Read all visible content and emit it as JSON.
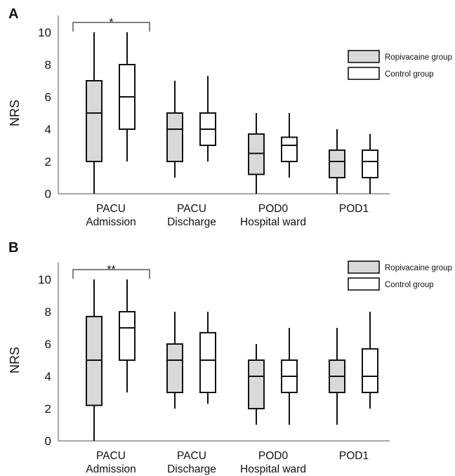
{
  "chart_data": [
    {
      "panel": "A",
      "type": "boxplot",
      "ylabel": "NRS",
      "ylim": [
        0,
        11
      ],
      "yticks": [
        "0",
        "2",
        "4",
        "6",
        "8",
        "10"
      ],
      "categories": [
        [
          "PACU",
          "Admission"
        ],
        [
          "PACU",
          "Discharge"
        ],
        [
          "POD0",
          "Hospital ward"
        ],
        [
          "POD1"
        ]
      ],
      "significance": [
        {
          "label": "*",
          "category_index": 0
        }
      ],
      "legend_position": "top-right",
      "series": [
        {
          "name": "Ropivacaine group",
          "fill": "#d9d9d9",
          "boxes": [
            {
              "min": 0,
              "q1": 2,
              "median": 5,
              "q3": 7,
              "max": 10
            },
            {
              "min": 1,
              "q1": 2,
              "median": 4,
              "q3": 5,
              "max": 7
            },
            {
              "min": 0,
              "q1": 1.2,
              "median": 2.5,
              "q3": 3.7,
              "max": 5
            },
            {
              "min": 0,
              "q1": 1,
              "median": 2,
              "q3": 2.7,
              "max": 4
            }
          ]
        },
        {
          "name": "Control group",
          "fill": "#ffffff",
          "boxes": [
            {
              "min": 2,
              "q1": 4,
              "median": 6,
              "q3": 8,
              "max": 10
            },
            {
              "min": 2,
              "q1": 3,
              "median": 4,
              "q3": 5,
              "max": 7.3
            },
            {
              "min": 1,
              "q1": 2,
              "median": 3,
              "q3": 3.5,
              "max": 5
            },
            {
              "min": 0,
              "q1": 1,
              "median": 2,
              "q3": 2.7,
              "max": 3.7
            }
          ]
        }
      ]
    },
    {
      "panel": "B",
      "type": "boxplot",
      "ylabel": "NRS",
      "ylim": [
        0,
        11
      ],
      "yticks": [
        "0",
        "2",
        "4",
        "6",
        "8",
        "10"
      ],
      "categories": [
        [
          "PACU",
          "Admission"
        ],
        [
          "PACU",
          "Discharge"
        ],
        [
          "POD0",
          "Hospital ward"
        ],
        [
          "POD1"
        ]
      ],
      "significance": [
        {
          "label": "**",
          "category_index": 0
        }
      ],
      "legend_position": "top-right",
      "series": [
        {
          "name": "Ropivacaine group",
          "fill": "#d9d9d9",
          "boxes": [
            {
              "min": 0,
              "q1": 2.2,
              "median": 5,
              "q3": 7.7,
              "max": 10
            },
            {
              "min": 2,
              "q1": 3,
              "median": 5,
              "q3": 6,
              "max": 8
            },
            {
              "min": 1,
              "q1": 2,
              "median": 4,
              "q3": 5,
              "max": 6
            },
            {
              "min": 1,
              "q1": 3,
              "median": 4,
              "q3": 5,
              "max": 7
            }
          ]
        },
        {
          "name": "Control group",
          "fill": "#ffffff",
          "boxes": [
            {
              "min": 3,
              "q1": 5,
              "median": 7,
              "q3": 8,
              "max": 10
            },
            {
              "min": 2.3,
              "q1": 3,
              "median": 5,
              "q3": 6.7,
              "max": 8
            },
            {
              "min": 1,
              "q1": 3,
              "median": 4,
              "q3": 5,
              "max": 7
            },
            {
              "min": 2,
              "q1": 3,
              "median": 4,
              "q3": 5.7,
              "max": 8
            }
          ]
        }
      ]
    }
  ]
}
